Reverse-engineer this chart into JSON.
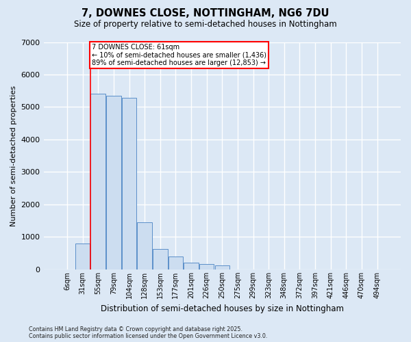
{
  "title": "7, DOWNES CLOSE, NOTTINGHAM, NG6 7DU",
  "subtitle": "Size of property relative to semi-detached houses in Nottingham",
  "xlabel": "Distribution of semi-detached houses by size in Nottingham",
  "ylabel": "Number of semi-detached properties",
  "categories": [
    "6sqm",
    "31sqm",
    "55sqm",
    "79sqm",
    "104sqm",
    "128sqm",
    "153sqm",
    "177sqm",
    "201sqm",
    "226sqm",
    "250sqm",
    "275sqm",
    "299sqm",
    "323sqm",
    "348sqm",
    "372sqm",
    "397sqm",
    "421sqm",
    "446sqm",
    "470sqm",
    "494sqm"
  ],
  "values": [
    0,
    800,
    5400,
    5350,
    5280,
    1450,
    620,
    390,
    215,
    175,
    130,
    0,
    0,
    0,
    0,
    0,
    0,
    0,
    0,
    0,
    0
  ],
  "bar_color": "#ccddf0",
  "bar_edge_color": "#5b8fc9",
  "annotation_title": "7 DOWNES CLOSE: 61sqm",
  "annotation_line1": "← 10% of semi-detached houses are smaller (1,436)",
  "annotation_line2": "89% of semi-detached houses are larger (12,853) →",
  "red_line_x": 1.5,
  "ylim": [
    0,
    7000
  ],
  "yticks": [
    0,
    1000,
    2000,
    3000,
    4000,
    5000,
    6000,
    7000
  ],
  "background_color": "#dce8f5",
  "grid_color": "#ffffff",
  "footer1": "Contains HM Land Registry data © Crown copyright and database right 2025.",
  "footer2": "Contains public sector information licensed under the Open Government Licence v3.0."
}
